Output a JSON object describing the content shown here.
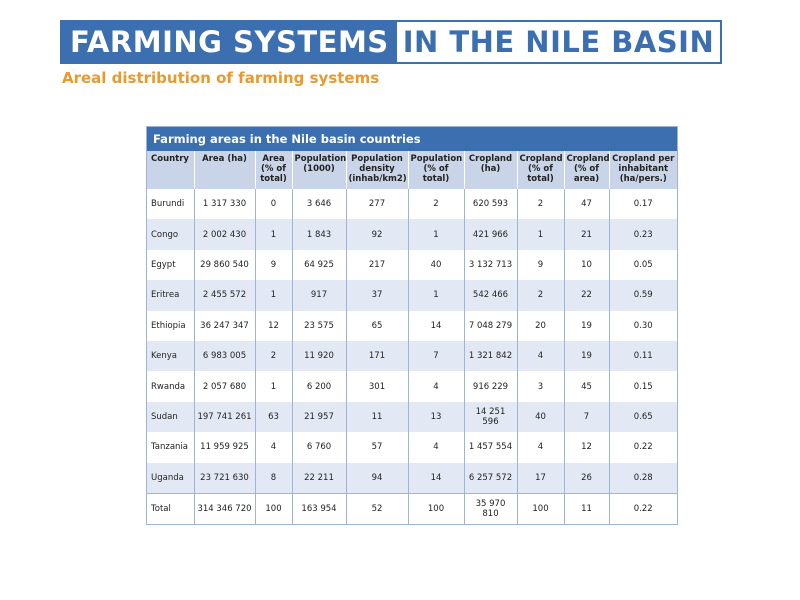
{
  "header": {
    "title_part1": "FARMING SYSTEMS",
    "title_part2": "IN THE NILE BASIN",
    "subtitle": "Areal distribution of farming systems"
  },
  "table": {
    "caption": "Farming areas in the Nile basin countries",
    "columns": [
      "Country",
      "Area (ha)",
      "Area (% of total)",
      "Population (1000)",
      "Population density (inhab/km2)",
      "Population (% of total)",
      "Cropland (ha)",
      "Cropland (% of total)",
      "Cropland (% of area)",
      "Cropland per inhabitant (ha/pers.)"
    ],
    "rows": [
      [
        "Burundi",
        "1 317 330",
        "0",
        "3 646",
        "277",
        "2",
        "620 593",
        "2",
        "47",
        "0.17"
      ],
      [
        "Congo",
        "2 002 430",
        "1",
        "1 843",
        "92",
        "1",
        "421 966",
        "1",
        "21",
        "0.23"
      ],
      [
        "Egypt",
        "29 860 540",
        "9",
        "64 925",
        "217",
        "40",
        "3 132 713",
        "9",
        "10",
        "0.05"
      ],
      [
        "Eritrea",
        "2 455 572",
        "1",
        "917",
        "37",
        "1",
        "542 466",
        "2",
        "22",
        "0.59"
      ],
      [
        "Ethiopia",
        "36 247 347",
        "12",
        "23 575",
        "65",
        "14",
        "7 048 279",
        "20",
        "19",
        "0.30"
      ],
      [
        "Kenya",
        "6 983 005",
        "2",
        "11 920",
        "171",
        "7",
        "1 321 842",
        "4",
        "19",
        "0.11"
      ],
      [
        "Rwanda",
        "2 057 680",
        "1",
        "6 200",
        "301",
        "4",
        "916 229",
        "3",
        "45",
        "0.15"
      ],
      [
        "Sudan",
        "197 741 261",
        "63",
        "21 957",
        "11",
        "13",
        "14 251 596",
        "40",
        "7",
        "0.65"
      ],
      [
        "Tanzania",
        "11 959 925",
        "4",
        "6 760",
        "57",
        "4",
        "1 457 554",
        "4",
        "12",
        "0.22"
      ],
      [
        "Uganda",
        "23 721 630",
        "8",
        "22 211",
        "94",
        "14",
        "6 257 572",
        "17",
        "26",
        "0.28"
      ],
      [
        "Total",
        "314 346 720",
        "100",
        "163 954",
        "52",
        "100",
        "35 970 810",
        "100",
        "11",
        "0.22"
      ]
    ]
  },
  "colors": {
    "title_blue": "#3b6fb0",
    "subtitle_orange": "#e89a2e",
    "header_row": "#c9d4e8",
    "stripe": "#e3e9f4"
  }
}
